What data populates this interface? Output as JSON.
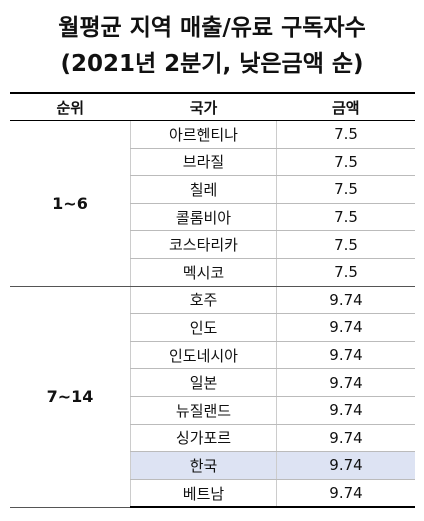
{
  "title": [
    "월평균 지역 매출/유료 구독자수",
    "(2021년 2분기, 낮은금액 순)"
  ],
  "table": {
    "header": [
      "순위",
      "국가",
      "금액"
    ],
    "groups": [
      {
        "rank": "1~6",
        "rows": [
          {
            "country": "아르헨티나",
            "amount": 7.5
          },
          {
            "country": "브라질",
            "amount": 7.5
          },
          {
            "country": "칠레",
            "amount": 7.5
          },
          {
            "country": "콜롬비아",
            "amount": 7.5
          },
          {
            "country": "코스타리카",
            "amount": 7.5
          },
          {
            "country": "멕시코",
            "amount": 7.5
          }
        ]
      },
      {
        "rank": "7~14",
        "rows": [
          {
            "country": "호주",
            "amount": 9.74
          },
          {
            "country": "인도",
            "amount": 9.74
          },
          {
            "country": "인도네시아",
            "amount": 9.74
          },
          {
            "country": "일본",
            "amount": 9.74
          },
          {
            "country": "뉴질랜드",
            "amount": 9.74
          },
          {
            "country": "싱가포르",
            "amount": 9.74
          },
          {
            "country": "한국",
            "amount": 9.74,
            "highlight": true
          },
          {
            "country": "베트남",
            "amount": 9.74
          }
        ]
      }
    ]
  }
}
